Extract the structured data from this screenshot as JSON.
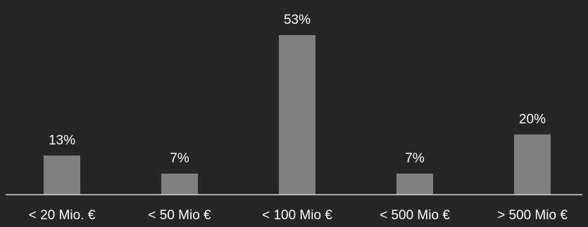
{
  "chart_data": {
    "type": "bar",
    "categories": [
      "< 20 Mio. €",
      "< 50 Mio €",
      "< 100 Mio €",
      "< 500 Mio €",
      "> 500 Mio €"
    ],
    "values": [
      13,
      7,
      53,
      7,
      20
    ],
    "value_labels": [
      "13%",
      "7%",
      "53%",
      "7%",
      "20%"
    ],
    "ylim": [
      0,
      53
    ],
    "grid": false,
    "legend": "none",
    "colors": {
      "background": "#262626",
      "bar": "#808080",
      "axis": "#d9d9d9",
      "text": "#ffffff"
    }
  }
}
